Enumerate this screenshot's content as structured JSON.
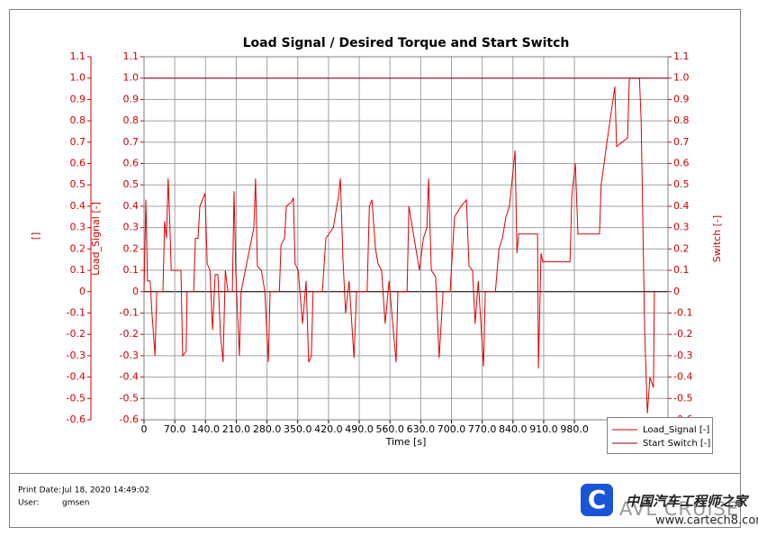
{
  "chart_data": {
    "type": "line",
    "title": "Load Signal / Desired Torque and Start Switch",
    "xlabel": "Time [s]",
    "ylabel": "Load_Signal [-]",
    "ylabel_outer": "[]",
    "y2label": "Switch [-]",
    "xlim": [
      0,
      1193
    ],
    "ylim": [
      -0.6,
      1.1
    ],
    "y2lim": [
      -0.6,
      1.1
    ],
    "xticks": [
      0,
      {
        "value": 70,
        "label": "70.0"
      },
      {
        "value": 140,
        "label": "140.0"
      },
      {
        "value": 210,
        "label": "210.0"
      },
      {
        "value": 280,
        "label": "280.0"
      },
      {
        "value": 350,
        "label": "350.0"
      },
      {
        "value": 420,
        "label": "420.0"
      },
      {
        "value": 490,
        "label": "490.0"
      },
      {
        "value": 560,
        "label": "560.0"
      },
      {
        "value": 630,
        "label": "630.0"
      },
      {
        "value": 700,
        "label": "700.0"
      },
      {
        "value": 770,
        "label": "770.0"
      },
      {
        "value": 840,
        "label": "840.0"
      },
      {
        "value": 910,
        "label": "910.0"
      },
      {
        "value": 980,
        "label": "980.0"
      }
    ],
    "yticks": [
      -0.6,
      -0.5,
      -0.4,
      -0.3,
      -0.2,
      -0.1,
      0,
      0.1,
      0.2,
      0.3,
      0.4,
      0.5,
      0.6,
      0.7,
      0.8,
      0.9,
      {
        "value": 1,
        "label": "1.0"
      },
      1.1
    ],
    "y2ticks": [
      -0.6,
      -0.5,
      -0.4,
      -0.3,
      -0.2,
      -0.1,
      0,
      0.1,
      0.2,
      0.3,
      0.4,
      0.5,
      0.6,
      0.7,
      0.8,
      0.9,
      {
        "value": 1,
        "label": "1.0"
      },
      1.1
    ],
    "grid": true,
    "legend": "lower right",
    "series": [
      {
        "name": "Load_Signal [-]",
        "color": "#e00000",
        "x": [
          0,
          4,
          8,
          14,
          18,
          25,
          29,
          43,
          47,
          51,
          55,
          59,
          62,
          84,
          88,
          96,
          98,
          113,
          117,
          123,
          127,
          139,
          144,
          150,
          156,
          162,
          168,
          174,
          180,
          185,
          191,
          201,
          205,
          209,
          217,
          221,
          250,
          254,
          258,
          267,
          275,
          283,
          287,
          308,
          312,
          320,
          324,
          336,
          340,
          344,
          351,
          361,
          369,
          375,
          381,
          385,
          406,
          414,
          431,
          443,
          447,
          453,
          459,
          467,
          478,
          484,
          508,
          513,
          519,
          527,
          533,
          541,
          549,
          558,
          574,
          578,
          599,
          603,
          611,
          619,
          627,
          636,
          644,
          648,
          654,
          664,
          672,
          681,
          697,
          707,
          722,
          734,
          740,
          748,
          754,
          761,
          773,
          777,
          800,
          808,
          816,
          824,
          832,
          845,
          849,
          853,
          896,
          898,
          904,
          908,
          970,
          974,
          982,
          988,
          1037,
          1041,
          1054,
          1072,
          1076,
          1101,
          1105,
          1128,
          1132,
          1140,
          1146,
          1152,
          1160,
          1162
        ],
        "values": [
          0,
          0.43,
          0.05,
          0.05,
          -0.1,
          -0.3,
          0,
          0,
          0.33,
          0.25,
          0.53,
          0.3,
          0.1,
          0.1,
          -0.3,
          -0.28,
          0,
          0,
          0.25,
          0.25,
          0.4,
          0.46,
          0.13,
          0.1,
          -0.18,
          0.08,
          0.08,
          -0.2,
          -0.33,
          0.1,
          0,
          0,
          0.47,
          0.08,
          -0.3,
          0,
          0.3,
          0.53,
          0.12,
          0.1,
          0,
          -0.33,
          0,
          0,
          0.22,
          0.25,
          0.4,
          0.42,
          0.44,
          0.13,
          0.1,
          -0.15,
          0.05,
          -0.33,
          -0.3,
          0,
          0,
          0.25,
          0.3,
          0.45,
          0.53,
          0.15,
          -0.1,
          0.05,
          -0.31,
          0,
          0,
          0.4,
          0.43,
          0.2,
          0.13,
          0.1,
          -0.15,
          0.05,
          -0.33,
          0,
          0,
          0.4,
          0.3,
          0.2,
          0.1,
          0.25,
          0.3,
          0.53,
          0.1,
          0.07,
          -0.31,
          0,
          0,
          0.35,
          0.4,
          0.43,
          0.12,
          0.1,
          -0.15,
          0.05,
          -0.35,
          0,
          0,
          0.2,
          0.25,
          0.35,
          0.4,
          0.66,
          0.18,
          0.27,
          0.27,
          -0.36,
          0.18,
          0.14,
          0.14,
          0.45,
          0.6,
          0.27,
          0.27,
          0.5,
          0.7,
          0.96,
          0.68,
          0.72,
          1,
          1,
          0.8,
          -0.18,
          -0.57,
          -0.4,
          -0.45,
          0
        ]
      },
      {
        "name": "Start Switch [-]",
        "color": "#9a0000",
        "axis": "y2",
        "x": [
          0,
          1193
        ],
        "values": [
          1,
          1
        ]
      }
    ]
  },
  "footer": {
    "print_date_label": "Print Date:",
    "print_date": "Jul 18, 2020 14:49:02",
    "user_label": "User:",
    "user": "gmsen"
  },
  "logo": {
    "text": "AVL CRUISE",
    "icon": "C"
  },
  "watermark": {
    "title": "中国汽车工程师之家",
    "url": "www.cartech8.com"
  }
}
